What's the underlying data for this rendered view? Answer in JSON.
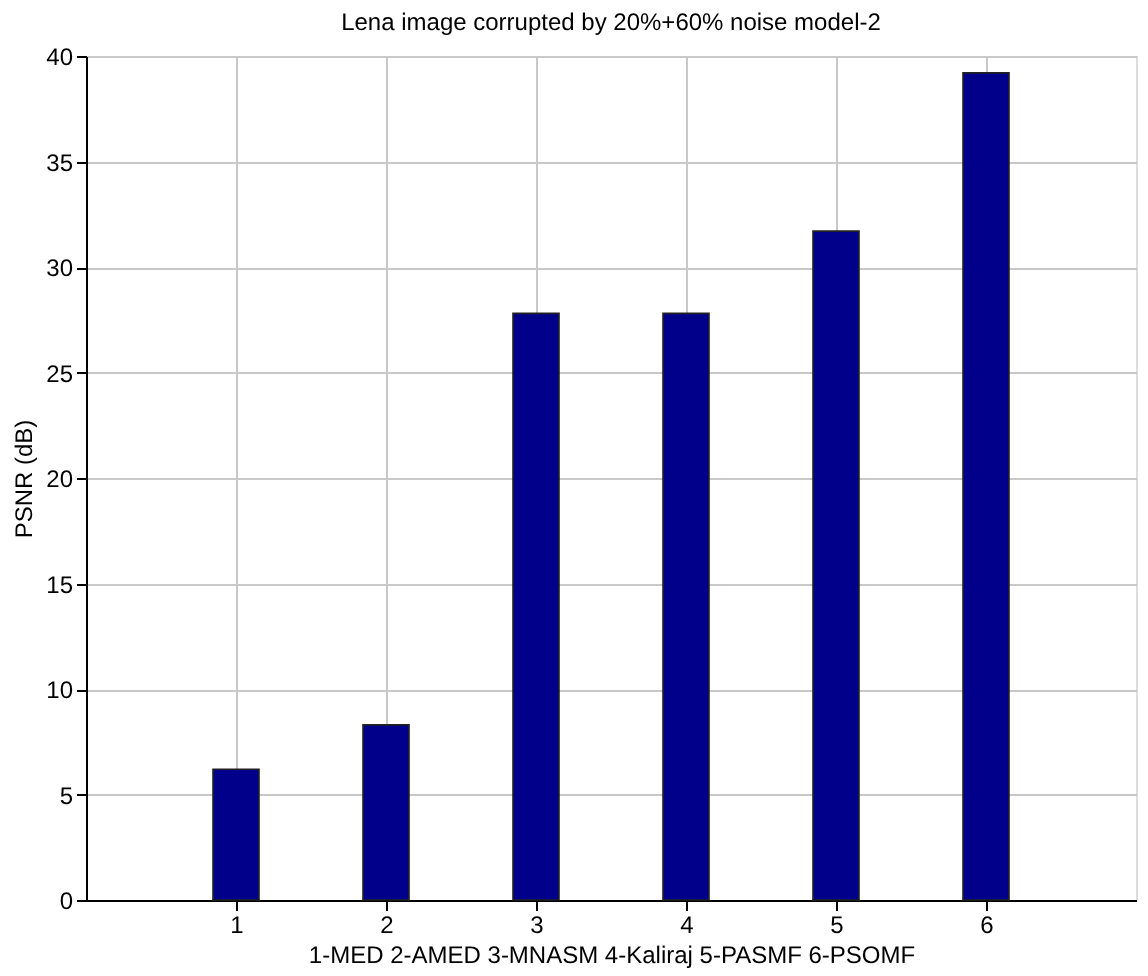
{
  "chart_data": {
    "type": "bar",
    "title": "Lena image corrupted by 20%+60% noise model-2",
    "xlabel": "1-MED  2-AMED  3-MNASM  4-Kaliraj  5-PASMF  6-PSOMF",
    "ylabel": "PSNR (dB)",
    "x": [
      1,
      2,
      3,
      4,
      5,
      6
    ],
    "values": [
      6.2,
      8.3,
      27.8,
      27.8,
      31.7,
      39.2
    ],
    "color": "#00008b",
    "xlim": [
      0,
      7
    ],
    "xticks": [
      1,
      2,
      3,
      4,
      5,
      6
    ],
    "ylim": [
      0,
      40
    ],
    "yticks": [
      0,
      5,
      10,
      15,
      20,
      25,
      30,
      35,
      40
    ],
    "grid": true
  }
}
